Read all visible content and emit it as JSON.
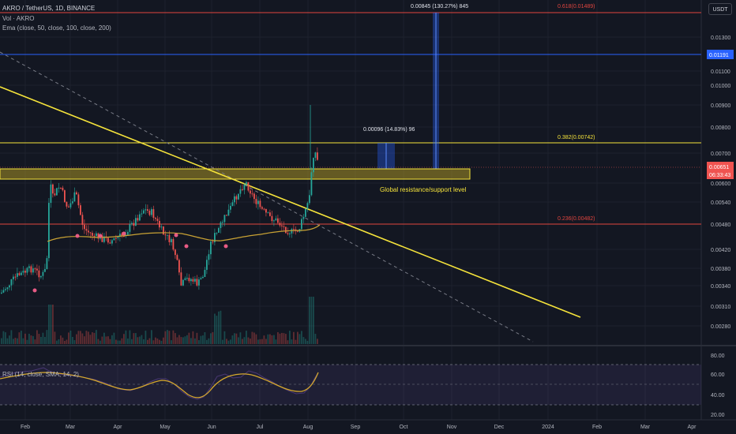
{
  "header": {
    "title": "AKRO / TetherUS, 1D, BINANCE",
    "volume": "Vol · AKRO",
    "ema": "Ema (close, 50, close, 100, close, 200)",
    "rsi": "RSI (14, close, SMA, 14, 2)"
  },
  "currency_button": "USDT",
  "price_axis": {
    "ticks": [
      "0.01300",
      "0.01100",
      "0.01000",
      "0.00900",
      "0.00800",
      "0.00700",
      "0.00600",
      "0.00540",
      "0.00480",
      "0.00420",
      "0.00380",
      "0.00340",
      "0.00310",
      "0.00280"
    ],
    "current_price": "0.00651",
    "countdown": "06:33:43",
    "marked_level": "0.01191"
  },
  "rsi_axis": {
    "ticks": [
      "80.00",
      "60.00",
      "40.00",
      "20.00"
    ]
  },
  "time_axis": {
    "ticks": [
      "Feb",
      "Mar",
      "Apr",
      "May",
      "Jun",
      "Jul",
      "Aug",
      "Sep",
      "Oct",
      "Nov",
      "Dec",
      "2024",
      "Feb",
      "Mar",
      "Apr"
    ]
  },
  "annotations": {
    "fib_0618": "0.618(0.01489)",
    "fib_0382": "0.382(0.00742)",
    "fib_0236": "0.236(0.00482)",
    "measure_top": "0.00845 (130.27%) 845",
    "measure_small": "0.00096 (14.83%) 96",
    "zone_label": "Global resistance/support level"
  },
  "colors": {
    "background": "#131722",
    "up": "#26a69a",
    "down": "#ef5350",
    "trendline": "#f5e33b",
    "fib": "#e0453f",
    "blue_level": "#2962ff",
    "rsi_line": "#d4a72c",
    "ema": "#c9a234"
  },
  "chart_data": {
    "type": "candlestick",
    "symbol": "AKRO / TetherUS",
    "interval": "1D",
    "last_price": 0.00651,
    "levels": [
      {
        "name": "0.618",
        "value": 0.01489
      },
      {
        "name": "0.382",
        "value": 0.00742
      },
      {
        "name": "0.236",
        "value": 0.00482
      },
      {
        "name": "marked",
        "value": 0.01191
      }
    ],
    "rsi_ylim": [
      20,
      80
    ]
  }
}
